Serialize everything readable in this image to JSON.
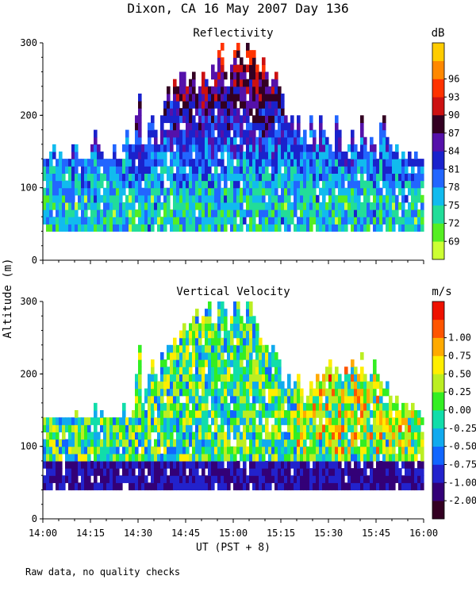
{
  "figure_title": "Dixon, CA 16 May 2007  Day 136",
  "footnote": "Raw data, no quality checks",
  "shared_ylabel": "Altitude (m)",
  "shared_xlabel": "UT  (PST + 8)",
  "chart_data": [
    {
      "type": "heatmap",
      "title": "Reflectivity",
      "xlabel": "UT  (PST + 8)",
      "ylabel": "Altitude (m)",
      "xlim": [
        0,
        120
      ],
      "x_tick_minutes": [
        0,
        15,
        30,
        45,
        60,
        75,
        90,
        105,
        120
      ],
      "x_tick_labels": [
        "14:00",
        "14:15",
        "14:30",
        "14:45",
        "15:00",
        "15:15",
        "15:30",
        "15:45",
        "16:00"
      ],
      "ylim": [
        0,
        300
      ],
      "y_ticks": [
        0,
        100,
        200,
        300
      ],
      "y_tick_labels": [
        "0",
        "100",
        "200",
        "300"
      ],
      "data_altitude_range": [
        40,
        300
      ],
      "colorbar": {
        "unit": "dB",
        "tick_labels": [
          "69",
          "72",
          "75",
          "78",
          "81",
          "84",
          "87",
          "90",
          "93",
          "96"
        ],
        "colors": [
          "#ccff33",
          "#55ee22",
          "#22dd99",
          "#11bbee",
          "#2266ff",
          "#1a22cc",
          "#5511aa",
          "#330022",
          "#cc1111",
          "#ff3300",
          "#ff8800",
          "#ffcc00"
        ]
      },
      "column_tops_m": [
        140,
        140,
        160,
        160,
        140,
        150,
        140,
        140,
        140,
        160,
        160,
        140,
        140,
        140,
        140,
        160,
        180,
        160,
        150,
        140,
        140,
        140,
        160,
        140,
        140,
        160,
        180,
        160,
        160,
        200,
        230,
        160,
        160,
        190,
        200,
        180,
        160,
        200,
        220,
        240,
        220,
        250,
        240,
        260,
        260,
        240,
        250,
        260,
        230,
        240,
        260,
        250,
        240,
        270,
        260,
        290,
        300,
        260,
        250,
        270,
        290,
        300,
        280,
        270,
        300,
        300,
        290,
        270,
        260,
        280,
        260,
        240,
        250,
        260,
        240,
        230,
        200,
        190,
        200,
        180,
        200,
        170,
        180,
        160,
        200,
        180,
        160,
        200,
        180,
        170,
        160,
        150,
        200,
        180,
        160,
        150,
        160,
        180,
        160,
        150,
        200,
        180,
        160,
        170,
        160,
        150,
        190,
        200,
        170,
        160,
        150,
        160,
        140,
        150,
        140,
        150,
        140,
        150,
        140,
        140
      ]
    },
    {
      "type": "heatmap",
      "title": "Vertical Velocity",
      "xlabel": "UT  (PST + 8)",
      "ylabel": "Altitude (m)",
      "xlim": [
        0,
        120
      ],
      "x_tick_minutes": [
        0,
        15,
        30,
        45,
        60,
        75,
        90,
        105,
        120
      ],
      "x_tick_labels": [
        "14:00",
        "14:15",
        "14:30",
        "14:45",
        "15:00",
        "15:15",
        "15:30",
        "15:45",
        "16:00"
      ],
      "ylim": [
        0,
        300
      ],
      "y_ticks": [
        0,
        100,
        200,
        300
      ],
      "y_tick_labels": [
        "0",
        "100",
        "200",
        "300"
      ],
      "data_altitude_range": [
        40,
        300
      ],
      "colorbar": {
        "unit": "m/s",
        "tick_labels": [
          "-2.00",
          "-1.00",
          "-0.75",
          "-0.50",
          "-0.25",
          "0.00",
          "0.25",
          "0.50",
          "0.75",
          "1.00"
        ],
        "colors": [
          "#330022",
          "#330077",
          "#2222cc",
          "#1166ff",
          "#11aaee",
          "#11ddaa",
          "#33ee22",
          "#bbee22",
          "#ffee00",
          "#ffaa00",
          "#ff5500",
          "#ee1100"
        ]
      },
      "column_tops_m": [
        140,
        140,
        140,
        140,
        140,
        140,
        140,
        140,
        140,
        140,
        150,
        140,
        140,
        140,
        140,
        140,
        160,
        140,
        150,
        140,
        140,
        140,
        140,
        140,
        140,
        160,
        140,
        140,
        160,
        200,
        240,
        160,
        180,
        200,
        220,
        200,
        190,
        230,
        220,
        240,
        240,
        250,
        240,
        260,
        270,
        260,
        270,
        280,
        290,
        270,
        280,
        290,
        300,
        280,
        270,
        300,
        300,
        290,
        260,
        280,
        300,
        300,
        280,
        270,
        300,
        300,
        280,
        270,
        260,
        250,
        240,
        230,
        240,
        230,
        220,
        200,
        190,
        200,
        180,
        190,
        200,
        180,
        160,
        170,
        190,
        180,
        200,
        190,
        200,
        210,
        220,
        200,
        210,
        200,
        190,
        210,
        200,
        220,
        210,
        200,
        230,
        210,
        190,
        200,
        220,
        200,
        190,
        180,
        190,
        170,
        160,
        170,
        150,
        160,
        170,
        150,
        160,
        150,
        150,
        150
      ]
    }
  ]
}
